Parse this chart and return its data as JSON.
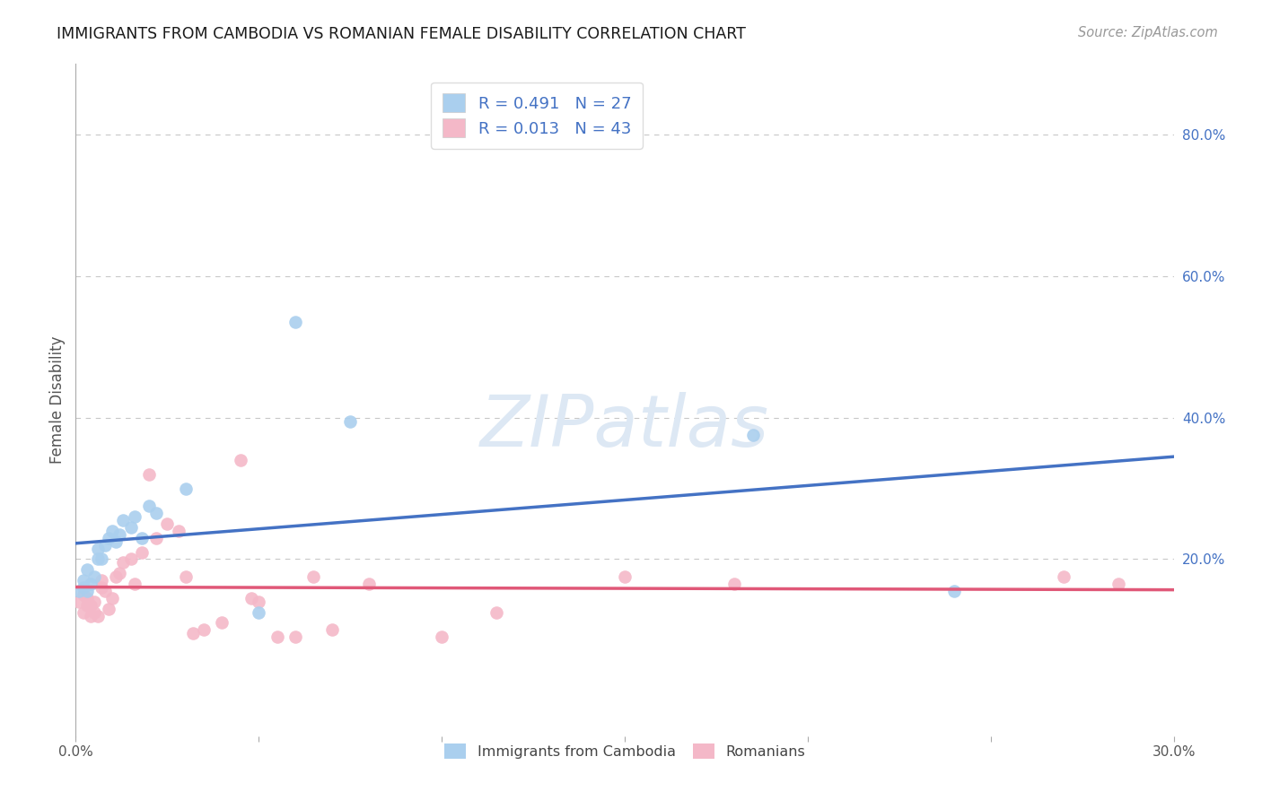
{
  "title": "IMMIGRANTS FROM CAMBODIA VS ROMANIAN FEMALE DISABILITY CORRELATION CHART",
  "source": "Source: ZipAtlas.com",
  "ylabel": "Female Disability",
  "right_yticks": [
    "80.0%",
    "60.0%",
    "40.0%",
    "20.0%"
  ],
  "right_ytick_vals": [
    0.8,
    0.6,
    0.4,
    0.2
  ],
  "xlim": [
    0.0,
    0.3
  ],
  "ylim": [
    -0.05,
    0.9
  ],
  "legend1_label": "R = 0.491   N = 27",
  "legend2_label": "R = 0.013   N = 43",
  "series1_label": "Immigrants from Cambodia",
  "series2_label": "Romanians",
  "color1": "#aacfee",
  "color2": "#f4b8c8",
  "line_color1": "#4472c4",
  "line_color2": "#e05878",
  "background_color": "#ffffff",
  "grid_color": "#c8c8c8",
  "series1_x": [
    0.001,
    0.002,
    0.002,
    0.003,
    0.003,
    0.004,
    0.005,
    0.006,
    0.006,
    0.007,
    0.008,
    0.009,
    0.01,
    0.011,
    0.012,
    0.013,
    0.015,
    0.016,
    0.018,
    0.02,
    0.022,
    0.05,
    0.06,
    0.075,
    0.185,
    0.24,
    0.03
  ],
  "series1_y": [
    0.155,
    0.16,
    0.17,
    0.155,
    0.185,
    0.165,
    0.175,
    0.2,
    0.215,
    0.2,
    0.22,
    0.23,
    0.24,
    0.225,
    0.235,
    0.255,
    0.245,
    0.26,
    0.23,
    0.275,
    0.265,
    0.125,
    0.535,
    0.395,
    0.375,
    0.155,
    0.3
  ],
  "series2_x": [
    0.001,
    0.002,
    0.002,
    0.003,
    0.003,
    0.004,
    0.004,
    0.005,
    0.005,
    0.006,
    0.007,
    0.007,
    0.008,
    0.009,
    0.01,
    0.011,
    0.012,
    0.013,
    0.015,
    0.016,
    0.018,
    0.02,
    0.022,
    0.025,
    0.028,
    0.03,
    0.032,
    0.035,
    0.04,
    0.045,
    0.048,
    0.05,
    0.055,
    0.06,
    0.065,
    0.07,
    0.08,
    0.1,
    0.115,
    0.15,
    0.18,
    0.27,
    0.285
  ],
  "series2_y": [
    0.14,
    0.15,
    0.125,
    0.135,
    0.145,
    0.12,
    0.135,
    0.125,
    0.14,
    0.12,
    0.16,
    0.17,
    0.155,
    0.13,
    0.145,
    0.175,
    0.18,
    0.195,
    0.2,
    0.165,
    0.21,
    0.32,
    0.23,
    0.25,
    0.24,
    0.175,
    0.095,
    0.1,
    0.11,
    0.34,
    0.145,
    0.14,
    0.09,
    0.09,
    0.175,
    0.1,
    0.165,
    0.09,
    0.125,
    0.175,
    0.165,
    0.175,
    0.165
  ],
  "watermark_text": "ZIPatlas",
  "watermark_color": "#dde8f4",
  "watermark_fontsize": 58
}
